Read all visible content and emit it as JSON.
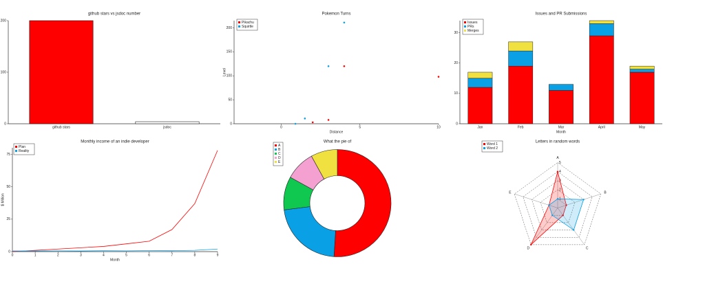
{
  "chart_data": [
    {
      "type": "bar",
      "title": "github stars vs jsdoc number",
      "categories": [
        "github stars",
        "jsdoc"
      ],
      "values": [
        200,
        4
      ],
      "colors": [
        "#ff0000",
        "#ffffff"
      ],
      "ylim": [
        0,
        200
      ],
      "yticks": [
        0,
        100,
        200
      ]
    },
    {
      "type": "scatter",
      "title": "Pokemon Turns",
      "xlabel": "Distance",
      "ylabel": "Level",
      "series": [
        {
          "name": "Pikachu",
          "color": "#ff0000",
          "x": [
            2,
            3,
            4,
            10
          ],
          "values": [
            3,
            8,
            120,
            98
          ]
        },
        {
          "name": "Squirtle",
          "color": "#0aa0e6",
          "x": [
            0.9,
            1.5,
            3,
            4
          ],
          "values": [
            0,
            11,
            120,
            211
          ]
        }
      ],
      "xlim": [
        -3,
        10
      ],
      "xticks": [
        0,
        5,
        10
      ],
      "ylim": [
        0,
        215
      ],
      "yticks": [
        0,
        50,
        100,
        150,
        200
      ]
    },
    {
      "type": "stacked-bar",
      "title": "Issues and PR Submissions",
      "xlabel": "Month",
      "categories": [
        "Jan",
        "Feb",
        "Mar",
        "April",
        "May"
      ],
      "series": [
        {
          "name": "Issues",
          "color": "#ff0000",
          "values": [
            12,
            19,
            11,
            29,
            17
          ]
        },
        {
          "name": "PRs",
          "color": "#0aa0e6",
          "values": [
            3,
            5,
            2,
            4,
            1
          ]
        },
        {
          "name": "Merges",
          "color": "#f0e040",
          "values": [
            2,
            3,
            0,
            1,
            1
          ]
        }
      ],
      "ylim": [
        0,
        34
      ],
      "yticks": [
        0,
        10,
        20,
        30
      ]
    },
    {
      "type": "line",
      "title": "Monthly income of an indie developer",
      "xlabel": "Month",
      "ylabel": "$ Million",
      "x": [
        0,
        1,
        2,
        3,
        4,
        5,
        6,
        7,
        8,
        9
      ],
      "series": [
        {
          "name": "Plan",
          "color": "#ff0000",
          "values": [
            0,
            1,
            2,
            3,
            4,
            6,
            8,
            17,
            37,
            78
          ]
        },
        {
          "name": "Reality",
          "color": "#0aa0e6",
          "values": [
            0.5,
            0.5,
            0.6,
            0.5,
            0.7,
            0.6,
            0.8,
            0.7,
            1,
            2
          ]
        }
      ],
      "xlim": [
        0,
        9
      ],
      "xticks": [
        0,
        1,
        2,
        3,
        4,
        5,
        6,
        7,
        8,
        9
      ],
      "ylim": [
        0,
        80
      ],
      "yticks": [
        0,
        25,
        50,
        75
      ]
    },
    {
      "type": "doughnut",
      "title": "What the pie of",
      "categories": [
        "A",
        "B",
        "C",
        "D",
        "E"
      ],
      "values": [
        51,
        22,
        10,
        9,
        8
      ],
      "colors": [
        "#ff0000",
        "#0aa0e6",
        "#10c850",
        "#f4a0d0",
        "#f0e040"
      ]
    },
    {
      "type": "radar",
      "title": "Letters in random words",
      "categories": [
        "A",
        "B",
        "C",
        "D",
        "E"
      ],
      "series": [
        {
          "name": "Word 1",
          "color": "#ff0000",
          "values": [
            4,
            1,
            1,
            5,
            1
          ]
        },
        {
          "name": "Word 2",
          "color": "#0aa0e6",
          "values": [
            1,
            3,
            3,
            1,
            1
          ]
        }
      ],
      "rlim": [
        0,
        5
      ],
      "rticks": [
        1,
        2,
        3,
        4,
        5
      ]
    }
  ]
}
